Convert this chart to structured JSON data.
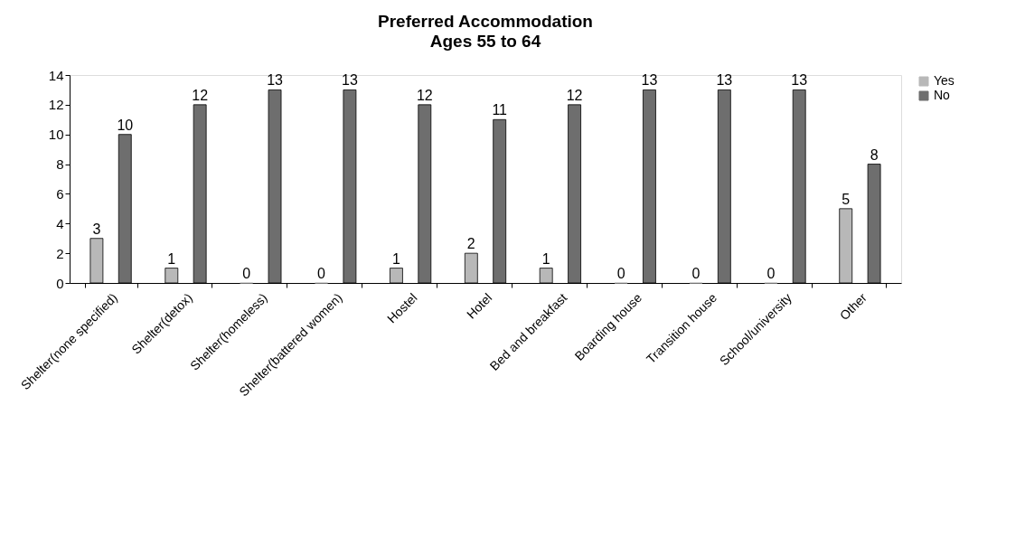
{
  "chart_data": {
    "type": "bar",
    "title": "Preferred Accommodation",
    "subtitle": "Ages 55 to 64",
    "categories": [
      "Shelter(none specified)",
      "Shelter(detox)",
      "Shelter(homeless)",
      "Shelter(battered women)",
      "Hostel",
      "Hotel",
      "Bed and breakfast",
      "Boarding house",
      "Transition house",
      "School/university",
      "Other"
    ],
    "series": [
      {
        "name": "Yes",
        "color": "#b8b8b8",
        "values": [
          3,
          1,
          0,
          0,
          1,
          2,
          1,
          0,
          0,
          0,
          5
        ]
      },
      {
        "name": "No",
        "color": "#6e6e6e",
        "values": [
          10,
          12,
          13,
          13,
          12,
          11,
          12,
          13,
          13,
          13,
          8
        ]
      }
    ],
    "ylim": [
      0,
      14
    ],
    "yticks": [
      0,
      2,
      4,
      6,
      8,
      10,
      12,
      14
    ],
    "grid": false,
    "legend": "right",
    "data_labels": true
  }
}
